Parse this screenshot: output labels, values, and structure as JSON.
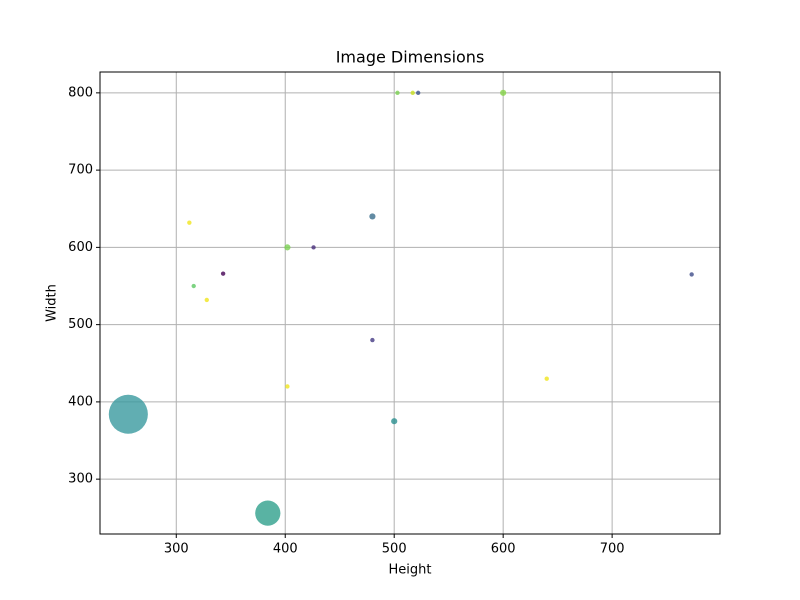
{
  "chart_data": {
    "type": "scatter",
    "title": "Image Dimensions",
    "x_label": "Height",
    "y_label": "Width",
    "x": [
      256,
      384,
      312,
      316,
      328,
      343,
      402,
      402,
      426,
      480,
      480,
      500,
      503,
      517,
      522,
      600,
      640,
      773
    ],
    "y": [
      384,
      256,
      632,
      550,
      532,
      566,
      600,
      420,
      600,
      640,
      480,
      375,
      800,
      800,
      800,
      800,
      430,
      565
    ],
    "sizes": [
      1200,
      500,
      15,
      15,
      15,
      15,
      30,
      15,
      15,
      30,
      15,
      30,
      15,
      15,
      15,
      30,
      15,
      15
    ],
    "colors": [
      "#3a9a9f",
      "#2fa08c",
      "#f0e51c",
      "#5cc863",
      "#f0e51c",
      "#440154",
      "#7ad151",
      "#f0e51c",
      "#472d7b",
      "#3b6e8c",
      "#443983",
      "#2a8f8e",
      "#7ad151",
      "#c8e020",
      "#3b528b",
      "#86d549",
      "#f0e51c",
      "#3e4c8a"
    ],
    "xlim": [
      230,
      799
    ],
    "ylim": [
      229,
      827
    ],
    "xticks": [
      300,
      400,
      500,
      600,
      700
    ],
    "yticks": [
      300,
      400,
      500,
      600,
      700,
      800
    ],
    "grid": true
  }
}
